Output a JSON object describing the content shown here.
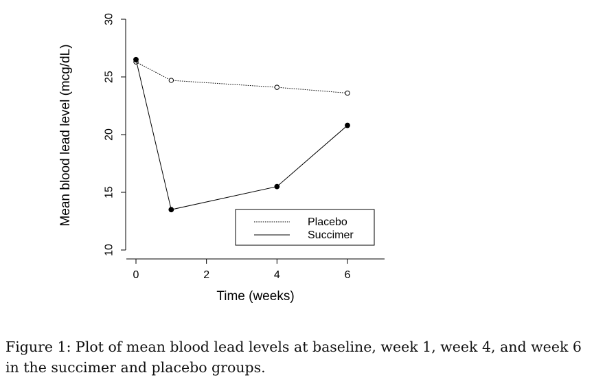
{
  "chart_data": {
    "type": "line",
    "title": "",
    "xlabel": "Time (weeks)",
    "ylabel": "Mean blood lead level (mcg/dL)",
    "xlim": [
      0,
      7
    ],
    "ylim": [
      10,
      30
    ],
    "xticks": [
      0,
      2,
      4,
      6
    ],
    "yticks": [
      10,
      15,
      20,
      25,
      30
    ],
    "grid": false,
    "legend": "bottom-right",
    "series": [
      {
        "name": "Placebo",
        "line_style": "dotted",
        "marker": "open-circle",
        "x": [
          0,
          1,
          4,
          6
        ],
        "y": [
          26.3,
          24.7,
          24.1,
          23.6
        ]
      },
      {
        "name": "Succimer",
        "line_style": "solid",
        "marker": "filled-circle",
        "x": [
          0,
          1,
          4,
          6
        ],
        "y": [
          26.5,
          13.5,
          15.5,
          20.8
        ]
      }
    ]
  },
  "caption": "Figure 1: Plot of mean blood lead levels at baseline, week 1, week 4, and week 6 in the succimer and placebo groups."
}
